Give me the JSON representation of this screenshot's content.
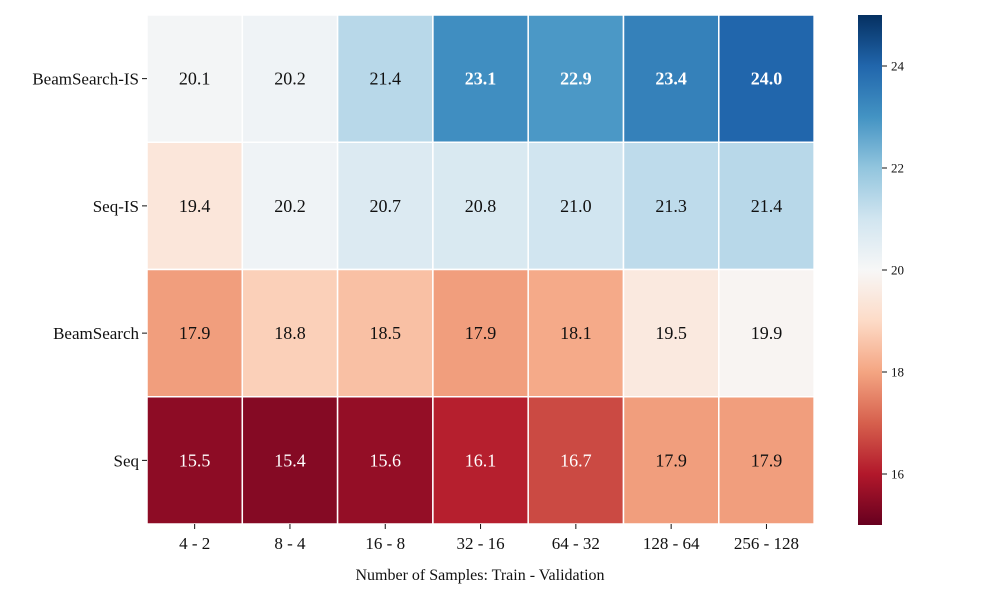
{
  "chart_data": {
    "type": "heatmap",
    "title": "",
    "xlabel": "Number of Samples: Train - Validation",
    "ylabel": "",
    "rows": [
      "BeamSearch-IS",
      "Seq-IS",
      "BeamSearch",
      "Seq"
    ],
    "columns": [
      "4 - 2",
      "8 - 4",
      "16 - 8",
      "32 - 16",
      "64 - 32",
      "128 - 64",
      "256 - 128"
    ],
    "values": [
      [
        20.1,
        20.2,
        21.4,
        23.1,
        22.9,
        23.4,
        24.0
      ],
      [
        19.4,
        20.2,
        20.7,
        20.8,
        21.0,
        21.3,
        21.4
      ],
      [
        17.9,
        18.8,
        18.5,
        17.9,
        18.1,
        19.5,
        19.9
      ],
      [
        15.5,
        15.4,
        15.6,
        16.1,
        16.7,
        17.9,
        17.9
      ]
    ],
    "cell_labels": [
      [
        "20.1",
        "20.2",
        "21.4",
        "23.1",
        "22.9",
        "23.4",
        "24.0"
      ],
      [
        "19.4",
        "20.2",
        "20.7",
        "20.8",
        "21.0",
        "21.3",
        "21.4"
      ],
      [
        "17.9",
        "18.8",
        "18.5",
        "17.9",
        "18.1",
        "19.5",
        "19.9"
      ],
      [
        "15.5",
        "15.4",
        "15.6",
        "16.1",
        "16.7",
        "17.9",
        "17.9"
      ]
    ],
    "bold_cells": [
      [
        0,
        3
      ],
      [
        0,
        4
      ],
      [
        0,
        5
      ],
      [
        0,
        6
      ]
    ],
    "colormap": "RdBu",
    "colorbar": {
      "range": [
        15,
        25
      ],
      "ticks": [
        16,
        18,
        20,
        22,
        24
      ],
      "tick_labels": [
        "16",
        "18",
        "20",
        "22",
        "24"
      ]
    }
  }
}
